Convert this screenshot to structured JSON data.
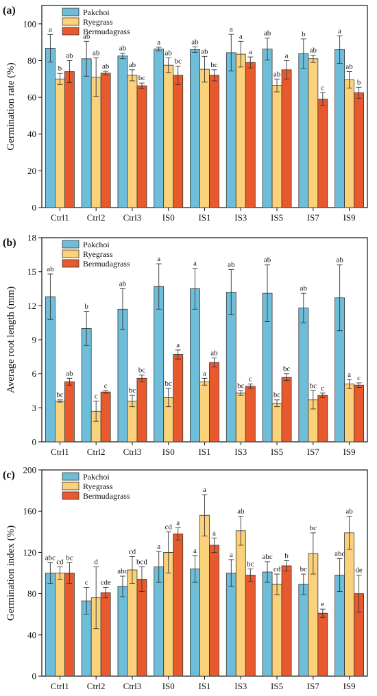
{
  "colors": {
    "Pakchoi": "#6ebed9",
    "Ryegrass": "#fbd27a",
    "Bermudagrass": "#e85a2e"
  },
  "chart_data": [
    {
      "type": "bar",
      "panel": "(a)",
      "ylabel": "Germination rate (%)",
      "ylim": [
        0,
        110
      ],
      "yticks": [
        0,
        20,
        40,
        60,
        80,
        100
      ],
      "categories": [
        "Ctrl1",
        "Ctrl2",
        "Ctrl3",
        "IS0",
        "IS1",
        "IS3",
        "IS5",
        "IS7",
        "IS9"
      ],
      "legend": "top-left",
      "series": [
        {
          "name": "Pakchoi",
          "values": [
            86.7,
            81.0,
            82.5,
            86.3,
            86.0,
            84.3,
            86.3,
            83.8,
            86.0
          ],
          "errors": [
            7.5,
            9.5,
            1.5,
            1.0,
            1.5,
            10.0,
            6.0,
            8.0,
            7.5
          ],
          "labels": [
            "a",
            "ab",
            "ab",
            "a",
            "ab",
            "a",
            "ab",
            "b",
            "a"
          ]
        },
        {
          "name": "Ryegrass",
          "values": [
            70.0,
            71.0,
            72.0,
            77.5,
            75.3,
            83.5,
            66.5,
            81.0,
            69.5
          ],
          "errors": [
            3.0,
            10.5,
            3.0,
            4.0,
            7.0,
            7.0,
            3.5,
            2.0,
            4.5
          ],
          "labels": [
            "b",
            "ab",
            "ab",
            "ab",
            "ab",
            "a",
            "ab",
            "ab",
            "ab"
          ]
        },
        {
          "name": "Bermudagrass",
          "values": [
            74.0,
            73.2,
            66.3,
            72.0,
            72.0,
            79.0,
            75.0,
            59.0,
            62.5
          ],
          "errors": [
            6.0,
            1.0,
            1.5,
            5.0,
            3.0,
            3.0,
            5.0,
            3.5,
            3.0
          ],
          "labels": [
            "ab",
            "ab",
            "bc",
            "bc",
            "bc",
            "a",
            "a",
            "c",
            "b"
          ]
        }
      ]
    },
    {
      "type": "bar",
      "panel": "(b)",
      "ylabel": "Average root length (mm)",
      "ylim": [
        0,
        18
      ],
      "yticks": [
        0,
        3,
        6,
        9,
        12,
        15,
        18
      ],
      "categories": [
        "Ctrl1",
        "Ctrl2",
        "Ctrl3",
        "IS0",
        "IS1",
        "IS3",
        "IS5",
        "IS7",
        "IS9"
      ],
      "legend": "top-left",
      "series": [
        {
          "name": "Pakchoi",
          "values": [
            12.8,
            10.0,
            11.7,
            13.7,
            13.5,
            13.2,
            13.1,
            11.8,
            12.7
          ],
          "errors": [
            2.0,
            1.5,
            1.8,
            2.0,
            1.8,
            2.0,
            2.5,
            1.3,
            2.9
          ],
          "labels": [
            "ab",
            "b",
            "ab",
            "a",
            "a",
            "ab",
            "ab",
            "ab",
            "ab"
          ]
        },
        {
          "name": "Ryegrass",
          "values": [
            3.6,
            2.7,
            3.6,
            3.9,
            5.3,
            4.3,
            3.4,
            3.7,
            5.1
          ],
          "errors": [
            0.1,
            0.9,
            0.5,
            0.8,
            0.3,
            0.2,
            0.3,
            0.8,
            0.4
          ],
          "labels": [
            "bc",
            "c",
            "bc",
            "bc",
            "a",
            "bc",
            "bc",
            "bc",
            "a"
          ]
        },
        {
          "name": "Bermudagrass",
          "values": [
            5.3,
            4.4,
            5.6,
            7.7,
            7.0,
            4.9,
            5.7,
            4.1,
            5.0
          ],
          "errors": [
            0.3,
            0.1,
            0.3,
            0.4,
            0.4,
            0.2,
            0.3,
            0.2,
            0.2
          ],
          "labels": [
            "ab",
            "c",
            "bc",
            "a",
            "ab",
            "c",
            "bc",
            "c",
            "c"
          ]
        }
      ]
    },
    {
      "type": "bar",
      "panel": "(c)",
      "ylabel": "Germination index (%)",
      "ylim": [
        0,
        200
      ],
      "yticks": [
        0,
        40,
        80,
        120,
        160,
        200
      ],
      "categories": [
        "Ctrl1",
        "Ctrl2",
        "Ctrl3",
        "IS0",
        "IS1",
        "IS3",
        "IS5",
        "IS7",
        "IS9"
      ],
      "legend": "top-left",
      "series": [
        {
          "name": "Pakchoi",
          "values": [
            100,
            73,
            87,
            106,
            104,
            100,
            101,
            89,
            98
          ],
          "errors": [
            10,
            13,
            10,
            15,
            13,
            13,
            10,
            10,
            16
          ],
          "labels": [
            "abc",
            "c",
            "abc",
            "a",
            "a",
            "a",
            "abc",
            "bc",
            "abc"
          ]
        },
        {
          "name": "Ryegrass",
          "values": [
            100,
            76,
            103,
            120,
            156,
            141,
            89,
            119,
            139
          ],
          "errors": [
            6,
            30,
            13,
            20,
            20,
            14,
            10,
            20,
            16
          ],
          "labels": [
            "cd",
            "d",
            "cd",
            "cd",
            "a",
            "ab",
            "cd",
            "bc",
            "ab"
          ]
        },
        {
          "name": "Bermudagrass",
          "values": [
            100,
            81,
            94,
            138,
            127,
            98,
            107,
            61,
            80
          ],
          "errors": [
            10,
            5,
            12,
            6,
            7,
            6,
            5,
            4,
            18
          ],
          "labels": [
            "bc",
            "cde",
            "bcd",
            "a",
            "a",
            "bc",
            "b",
            "e",
            "de"
          ]
        }
      ]
    }
  ]
}
